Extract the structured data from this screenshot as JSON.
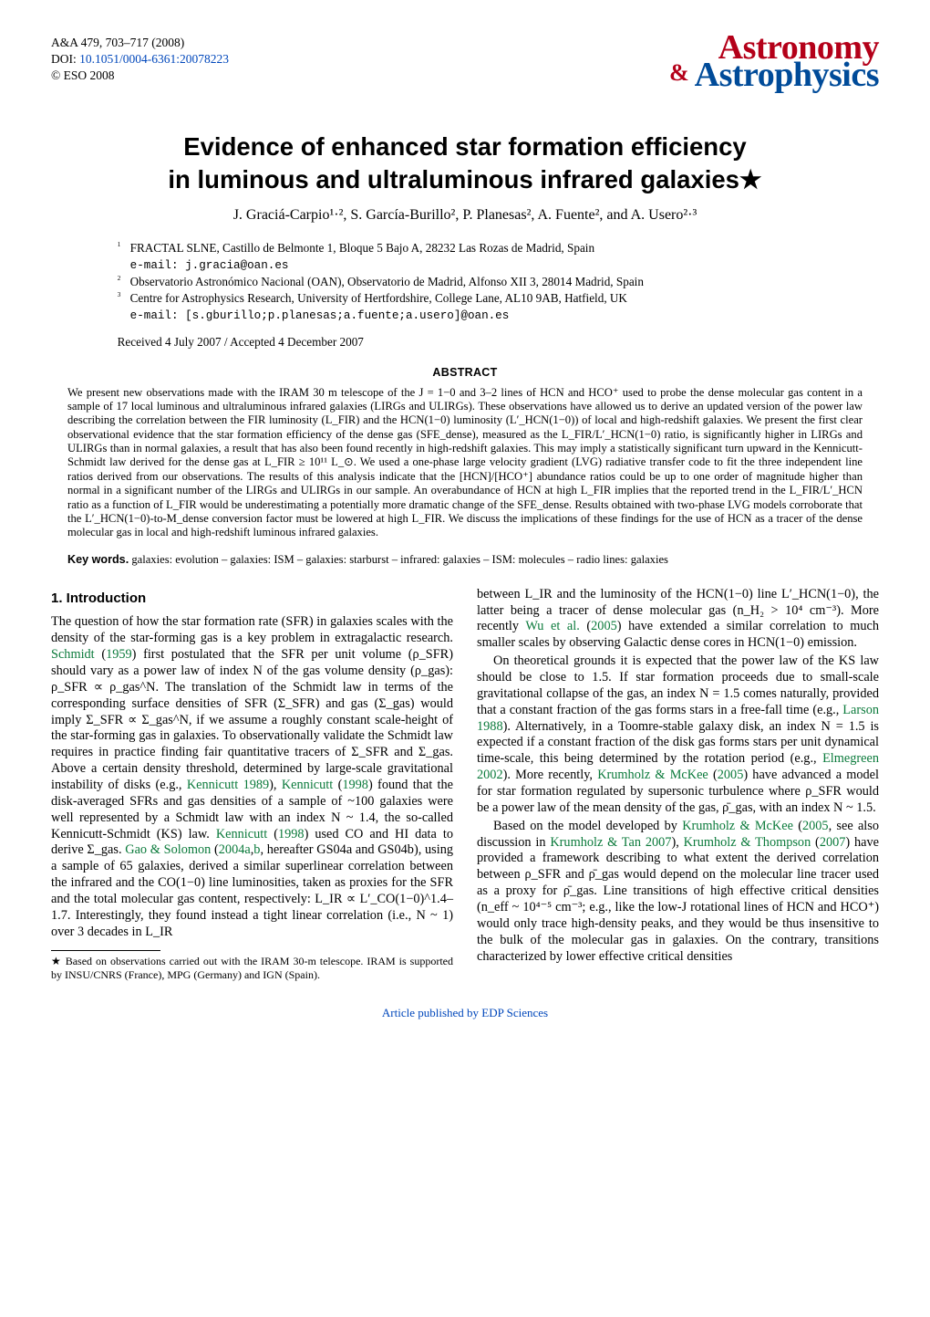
{
  "meta": {
    "journal_line": "A&A 479, 703–717 (2008)",
    "doi_label": "DOI: ",
    "doi": "10.1051/0004-6361:20078223",
    "copyright": "© ESO 2008"
  },
  "logo": {
    "line1": "Astronomy",
    "amp": "&",
    "line2": "Astrophysics",
    "color_top": "#b40019",
    "color_bottom": "#004b99"
  },
  "title": {
    "line1": "Evidence of enhanced star formation efficiency",
    "line2": "in luminous and ultraluminous infrared galaxies★"
  },
  "authors": "J. Graciá-Carpio¹·², S. García-Burillo², P. Planesas², A. Fuente², and A. Usero²·³",
  "affiliations": [
    {
      "n": "1",
      "text": "FRACTAL SLNE, Castillo de Belmonte 1, Bloque 5 Bajo A, 28232 Las Rozas de Madrid, Spain",
      "email": "e-mail: j.gracia@oan.es"
    },
    {
      "n": "2",
      "text": "Observatorio Astronómico Nacional (OAN), Observatorio de Madrid, Alfonso XII 3, 28014 Madrid, Spain",
      "email": ""
    },
    {
      "n": "3",
      "text": "Centre for Astrophysics Research, University of Hertfordshire, College Lane, AL10 9AB, Hatfield, UK",
      "email": "e-mail: [s.gburillo;p.planesas;a.fuente;a.usero]@oan.es"
    }
  ],
  "dates": "Received 4 July 2007 / Accepted 4 December 2007",
  "abstract_heading": "ABSTRACT",
  "abstract": "We present new observations made with the IRAM 30 m telescope of the J = 1−0 and 3–2 lines of HCN and HCO⁺ used to probe the dense molecular gas content in a sample of 17 local luminous and ultraluminous infrared galaxies (LIRGs and ULIRGs). These observations have allowed us to derive an updated version of the power law describing the correlation between the FIR luminosity (L_FIR) and the HCN(1−0) luminosity (L′_HCN(1−0)) of local and high-redshift galaxies. We present the first clear observational evidence that the star formation efficiency of the dense gas (SFE_dense), measured as the L_FIR/L′_HCN(1−0) ratio, is significantly higher in LIRGs and ULIRGs than in normal galaxies, a result that has also been found recently in high-redshift galaxies. This may imply a statistically significant turn upward in the Kennicutt-Schmidt law derived for the dense gas at L_FIR ≥ 10¹¹ L_⊙. We used a one-phase large velocity gradient (LVG) radiative transfer code to fit the three independent line ratios derived from our observations. The results of this analysis indicate that the [HCN]/[HCO⁺] abundance ratios could be up to one order of magnitude higher than normal in a significant number of the LIRGs and ULIRGs in our sample. An overabundance of HCN at high L_FIR implies that the reported trend in the L_FIR/L′_HCN ratio as a function of L_FIR would be underestimating a potentially more dramatic change of the SFE_dense. Results obtained with two-phase LVG models corroborate that the L′_HCN(1−0)-to-M_dense conversion factor must be lowered at high L_FIR. We discuss the implications of these findings for the use of HCN as a tracer of the dense molecular gas in local and high-redshift luminous infrared galaxies.",
  "keywords_label": "Key words.",
  "keywords": " galaxies: evolution – galaxies: ISM – galaxies: starburst – infrared: galaxies – ISM: molecules – radio lines: galaxies",
  "section1_head": "1. Introduction",
  "left": {
    "p1_a": "The question of how the star formation rate (SFR) in galaxies scales with the density of the star-forming gas is a key problem in extragalactic research. ",
    "p1_cite1": "Schmidt",
    "p1_b": " (",
    "p1_cite1y": "1959",
    "p1_c": ") first postulated that the SFR per unit volume (ρ_SFR) should vary as a power law of index N of the gas volume density (ρ_gas): ρ_SFR ∝ ρ_gas^N. The translation of the Schmidt law in terms of the corresponding surface densities of SFR (Σ_SFR) and gas (Σ_gas) would imply Σ_SFR ∝ Σ_gas^N, if we assume a roughly constant scale-height of the star-forming gas in galaxies. To observationally validate the Schmidt law requires in practice finding fair quantitative tracers of Σ_SFR and Σ_gas. Above a certain density threshold, determined by large-scale gravitational instability of disks (e.g., ",
    "p1_cite2": "Kennicutt 1989",
    "p1_d": "), ",
    "p1_cite3": "Kennicutt",
    "p1_e": " (",
    "p1_cite3y": "1998",
    "p1_f": ") found that the disk-averaged SFRs and gas densities of a sample of ~100 galaxies were well represented by a Schmidt law with an index N ~ 1.4, the so-called Kennicutt-Schmidt (KS) law. ",
    "p1_cite4": "Kennicutt",
    "p1_g": " (",
    "p1_cite4y": "1998",
    "p1_h": ") used CO and HI data to derive Σ_gas. ",
    "p1_cite5": "Gao & Solomon",
    "p1_i": " (",
    "p1_cite5y": "2004a",
    "p1_j": ",",
    "p1_cite5y2": "b",
    "p1_k": ", hereafter GS04a and GS04b), using a sample of 65 galaxies, derived a similar superlinear correlation between the infrared and the CO(1−0) line luminosities, taken as proxies for the SFR and the total molecular gas content, respectively: L_IR ∝ L′_CO(1−0)^1.4–1.7. Interestingly, they found instead a tight linear correlation (i.e., N ~ 1) over 3 decades in L_IR"
  },
  "footnote": "★ Based on observations carried out with the IRAM 30-m telescope. IRAM is supported by INSU/CNRS (France), MPG (Germany) and IGN (Spain).",
  "right": {
    "p1": "between L_IR and the luminosity of the HCN(1−0) line L′_HCN(1−0), the latter being a tracer of dense molecular gas (n_H₂ > 10⁴ cm⁻³). More recently ",
    "p1_cite1": "Wu et al.",
    "p1_b": " (",
    "p1_cite1y": "2005",
    "p1_c": ") have extended a similar correlation to much smaller scales by observing Galactic dense cores in HCN(1−0) emission.",
    "p2_a": "On theoretical grounds it is expected that the power law of the KS law should be close to 1.5. If star formation proceeds due to small-scale gravitational collapse of the gas, an index N = 1.5 comes naturally, provided that a constant fraction of the gas forms stars in a free-fall time (e.g., ",
    "p2_cite1": "Larson 1988",
    "p2_b": "). Alternatively, in a Toomre-stable galaxy disk, an index N = 1.5 is expected if a constant fraction of the disk gas forms stars per unit dynamical time-scale, this being determined by the rotation period (e.g., ",
    "p2_cite2": "Elmegreen 2002",
    "p2_c": "). More recently, ",
    "p2_cite3": "Krumholz & McKee",
    "p2_d": " (",
    "p2_cite3y": "2005",
    "p2_e": ") have advanced a model for star formation regulated by supersonic turbulence where ρ_SFR would be a power law of the mean density of the gas, ρ̄_gas, with an index N ~ 1.5.",
    "p3_a": "Based on the model developed by ",
    "p3_cite1": "Krumholz & McKee",
    "p3_b": " (",
    "p3_cite1y": "2005",
    "p3_c": ", see also discussion in ",
    "p3_cite2": "Krumholz & Tan 2007",
    "p3_d": "), ",
    "p3_cite3": "Krumholz & Thompson",
    "p3_e": " (",
    "p3_cite3y": "2007",
    "p3_f": ") have provided a framework describing to what extent the derived correlation between ρ_SFR and ρ̄_gas would depend on the molecular line tracer used as a proxy for ρ̄_gas. Line transitions of high effective critical densities (n_eff ~ 10⁴⁻⁵ cm⁻³; e.g., like the low-J rotational lines of HCN and HCO⁺) would only trace high-density peaks, and they would be thus insensitive to the bulk of the molecular gas in galaxies. On the contrary, transitions characterized by lower effective critical densities"
  },
  "footer_link": "Article published by EDP Sciences"
}
